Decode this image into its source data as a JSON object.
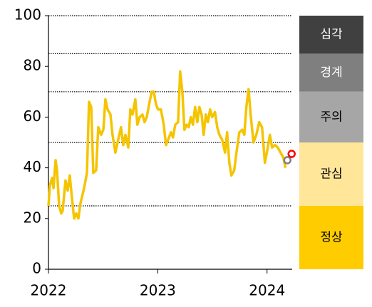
{
  "chart_data": {
    "type": "line",
    "xlim": [
      2022,
      2024.23
    ],
    "xticks": [
      2022,
      2023,
      2024
    ],
    "ylim": [
      0,
      100
    ],
    "yticks": [
      0,
      20,
      40,
      60,
      80,
      100
    ],
    "series": [
      {
        "color": "#f5c400",
        "x": [
          2022.0,
          2022.013,
          2022.033,
          2022.046,
          2022.065,
          2022.078,
          2022.098,
          2022.117,
          2022.13,
          2022.156,
          2022.176,
          2022.195,
          2022.215,
          2022.235,
          2022.254,
          2022.274,
          2022.293,
          2022.326,
          2022.352,
          2022.371,
          2022.391,
          2022.41,
          2022.436,
          2022.456,
          2022.482,
          2022.502,
          2022.521,
          2022.541,
          2022.567,
          2022.586,
          2022.612,
          2022.638,
          2022.664,
          2022.684,
          2022.704,
          2022.73,
          2022.749,
          2022.769,
          2022.795,
          2022.814,
          2022.834,
          2022.86,
          2022.879,
          2022.899,
          2022.925,
          2022.945,
          2022.964,
          2022.984,
          2023.003,
          2023.029,
          2023.055,
          2023.075,
          2023.094,
          2023.121,
          2023.14,
          2023.16,
          2023.186,
          2023.205,
          2023.225,
          2023.244,
          2023.264,
          2023.283,
          2023.303,
          2023.322,
          2023.342,
          2023.362,
          2023.381,
          2023.401,
          2023.42,
          2023.44,
          2023.459,
          2023.479,
          2023.498,
          2023.524,
          2023.544,
          2023.564,
          2023.59,
          2023.616,
          2023.635,
          2023.655,
          2023.674,
          2023.7,
          2023.72,
          2023.746,
          2023.772,
          2023.792,
          2023.811,
          2023.831,
          2023.85,
          2023.876,
          2023.902,
          2023.928,
          2023.954,
          2023.98,
          2024.007,
          2024.026,
          2024.046,
          2024.072,
          2024.098,
          2024.124,
          2024.15,
          2024.169
        ],
        "values": [
          25,
          33,
          36,
          32,
          43,
          39,
          25,
          22,
          23,
          35,
          31,
          37,
          28,
          20,
          22,
          20,
          26,
          32,
          38,
          66,
          64,
          38,
          39,
          56,
          53,
          55,
          67,
          63,
          61,
          53,
          46,
          51,
          56,
          49,
          53,
          48,
          63,
          61,
          67,
          57,
          60,
          61,
          58,
          60,
          66,
          70,
          70,
          65,
          63,
          63,
          57,
          49,
          51,
          54,
          52,
          57,
          58,
          78,
          70,
          55,
          57,
          56,
          60,
          57,
          64,
          58,
          64,
          61,
          53,
          61,
          58,
          63,
          60,
          62,
          56,
          53,
          51,
          46,
          54,
          42,
          37,
          39,
          46,
          54,
          55,
          53,
          64,
          71,
          61,
          50,
          53,
          58,
          56,
          42,
          48,
          53,
          48,
          49,
          48,
          46,
          44,
          40
        ]
      }
    ],
    "points": [
      {
        "x": 2024.186,
        "value": 43,
        "color": "#808080"
      },
      {
        "x": 2024.225,
        "value": 45.5,
        "color": "#ff0000"
      }
    ],
    "bands": [
      {
        "label": "심각",
        "from": 85,
        "to": 100,
        "color": "#404040",
        "text_color": "#ffffff"
      },
      {
        "label": "경계",
        "from": 70,
        "to": 85,
        "color": "#7f7f7f",
        "text_color": "#ffffff"
      },
      {
        "label": "주의",
        "from": 50,
        "to": 70,
        "color": "#a6a6a6",
        "text_color": "#000000"
      },
      {
        "label": "관심",
        "from": 25,
        "to": 50,
        "color": "#ffe699",
        "text_color": "#000000"
      },
      {
        "label": "정상",
        "from": 0,
        "to": 25,
        "color": "#ffcc00",
        "text_color": "#000000"
      }
    ]
  }
}
